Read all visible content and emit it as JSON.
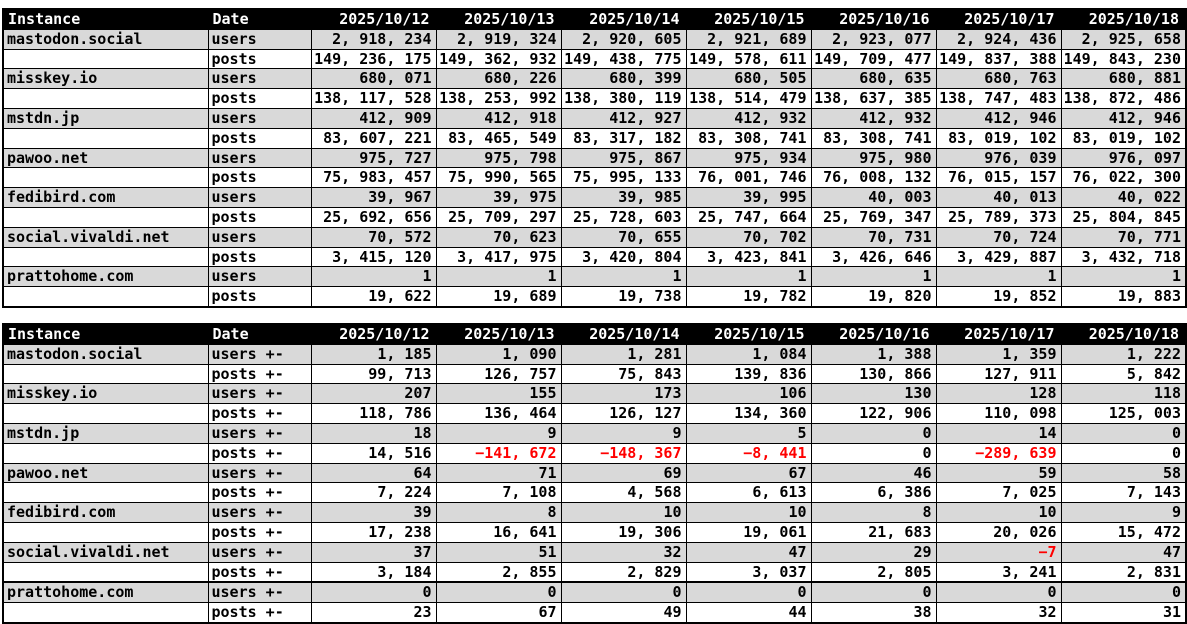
{
  "colors": {
    "header_bg": "#000000",
    "header_text": "#ffffff",
    "shaded_row_bg": "#d9d9d9",
    "negative_value_text": "#ff0000",
    "grid": "#000000"
  },
  "chart_data": [
    {
      "type": "table",
      "description": "instance totals by date",
      "columns": [
        "Instance",
        "Date",
        "2025/10/12",
        "2025/10/13",
        "2025/10/14",
        "2025/10/15",
        "2025/10/16",
        "2025/10/17",
        "2025/10/18"
      ],
      "rows": [
        [
          "mastodon.social",
          "users",
          "2, 918, 234",
          "2, 919, 324",
          "2, 920, 605",
          "2, 921, 689",
          "2, 923, 077",
          "2, 924, 436",
          "2, 925, 658"
        ],
        [
          "",
          "posts",
          "149, 236, 175",
          "149, 362, 932",
          "149, 438, 775",
          "149, 578, 611",
          "149, 709, 477",
          "149, 837, 388",
          "149, 843, 230"
        ],
        [
          "misskey.io",
          "users",
          "680, 071",
          "680, 226",
          "680, 399",
          "680, 505",
          "680, 635",
          "680, 763",
          "680, 881"
        ],
        [
          "",
          "posts",
          "138, 117, 528",
          "138, 253, 992",
          "138, 380, 119",
          "138, 514, 479",
          "138, 637, 385",
          "138, 747, 483",
          "138, 872, 486"
        ],
        [
          "mstdn.jp",
          "users",
          "412, 909",
          "412, 918",
          "412, 927",
          "412, 932",
          "412, 932",
          "412, 946",
          "412, 946"
        ],
        [
          "",
          "posts",
          "83, 607, 221",
          "83, 465, 549",
          "83, 317, 182",
          "83, 308, 741",
          "83, 308, 741",
          "83, 019, 102",
          "83, 019, 102"
        ],
        [
          "pawoo.net",
          "users",
          "975, 727",
          "975, 798",
          "975, 867",
          "975, 934",
          "975, 980",
          "976, 039",
          "976, 097"
        ],
        [
          "",
          "posts",
          "75, 983, 457",
          "75, 990, 565",
          "75, 995, 133",
          "76, 001, 746",
          "76, 008, 132",
          "76, 015, 157",
          "76, 022, 300"
        ],
        [
          "fedibird.com",
          "users",
          "39, 967",
          "39, 975",
          "39, 985",
          "39, 995",
          "40, 003",
          "40, 013",
          "40, 022"
        ],
        [
          "",
          "posts",
          "25, 692, 656",
          "25, 709, 297",
          "25, 728, 603",
          "25, 747, 664",
          "25, 769, 347",
          "25, 789, 373",
          "25, 804, 845"
        ],
        [
          "social.vivaldi.net",
          "users",
          "70, 572",
          "70, 623",
          "70, 655",
          "70, 702",
          "70, 731",
          "70, 724",
          "70, 771"
        ],
        [
          "",
          "posts",
          "3, 415, 120",
          "3, 417, 975",
          "3, 420, 804",
          "3, 423, 841",
          "3, 426, 646",
          "3, 429, 887",
          "3, 432, 718"
        ],
        [
          "prattohome.com",
          "users",
          "1",
          "1",
          "1",
          "1",
          "1",
          "1",
          "1"
        ],
        [
          "",
          "posts",
          "19, 622",
          "19, 689",
          "19, 738",
          "19, 782",
          "19, 820",
          "19, 852",
          "19, 883"
        ]
      ]
    },
    {
      "type": "table",
      "description": "instance daily change by date",
      "columns": [
        "Instance",
        "Date",
        "2025/10/12",
        "2025/10/13",
        "2025/10/14",
        "2025/10/15",
        "2025/10/16",
        "2025/10/17",
        "2025/10/18"
      ],
      "thick_top_row": 12,
      "rows": [
        [
          "mastodon.social",
          "users +-",
          "1, 185",
          "1, 090",
          "1, 281",
          "1, 084",
          "1, 388",
          "1, 359",
          "1, 222"
        ],
        [
          "",
          "posts +-",
          "99, 713",
          "126, 757",
          "75, 843",
          "139, 836",
          "130, 866",
          "127, 911",
          "5, 842"
        ],
        [
          "misskey.io",
          "users +-",
          "207",
          "155",
          "173",
          "106",
          "130",
          "128",
          "118"
        ],
        [
          "",
          "posts +-",
          "118, 786",
          "136, 464",
          "126, 127",
          "134, 360",
          "122, 906",
          "110, 098",
          "125, 003"
        ],
        [
          "mstdn.jp",
          "users +-",
          "18",
          "9",
          "9",
          "5",
          "0",
          "14",
          "0"
        ],
        [
          "",
          "posts +-",
          "14, 516",
          "−141, 672",
          "−148, 367",
          "−8, 441",
          "0",
          "−289, 639",
          "0"
        ],
        [
          "pawoo.net",
          "users +-",
          "64",
          "71",
          "69",
          "67",
          "46",
          "59",
          "58"
        ],
        [
          "",
          "posts +-",
          "7, 224",
          "7, 108",
          "4, 568",
          "6, 613",
          "6, 386",
          "7, 025",
          "7, 143"
        ],
        [
          "fedibird.com",
          "users +-",
          "39",
          "8",
          "10",
          "10",
          "8",
          "10",
          "9"
        ],
        [
          "",
          "posts +-",
          "17, 238",
          "16, 641",
          "19, 306",
          "19, 061",
          "21, 683",
          "20, 026",
          "15, 472"
        ],
        [
          "social.vivaldi.net",
          "users +-",
          "37",
          "51",
          "32",
          "47",
          "29",
          "−7",
          "47"
        ],
        [
          "",
          "posts +-",
          "3, 184",
          "2, 855",
          "2, 829",
          "3, 037",
          "2, 805",
          "3, 241",
          "2, 831"
        ],
        [
          "prattohome.com",
          "users +-",
          "0",
          "0",
          "0",
          "0",
          "0",
          "0",
          "0"
        ],
        [
          "",
          "posts +-",
          "23",
          "67",
          "49",
          "44",
          "38",
          "32",
          "31"
        ]
      ]
    }
  ]
}
